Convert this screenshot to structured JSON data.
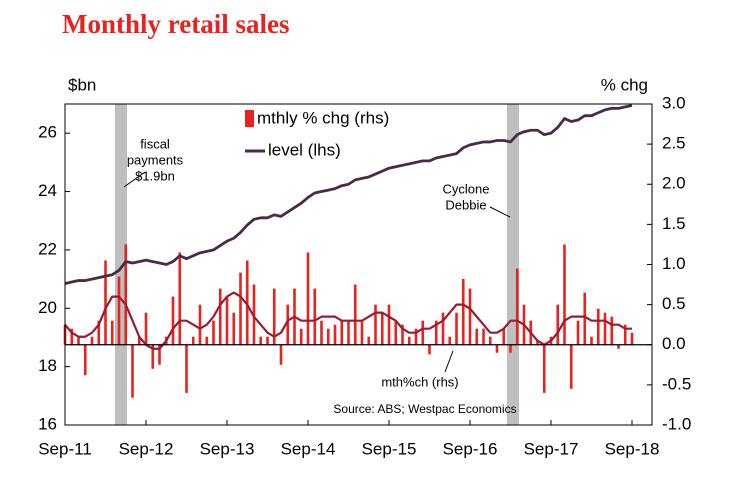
{
  "chart_data": {
    "type": "bar-line",
    "title": "Monthly retail sales",
    "y_axis_title": "$bn",
    "y2_axis_title": "% chg",
    "categories": [
      "Sep-11",
      null,
      null,
      null,
      null,
      null,
      null,
      null,
      null,
      null,
      null,
      null,
      "Sep-12",
      null,
      null,
      null,
      null,
      null,
      null,
      null,
      null,
      null,
      null,
      null,
      "Sep-13",
      null,
      null,
      null,
      null,
      null,
      null,
      null,
      null,
      null,
      null,
      null,
      "Sep-14",
      null,
      null,
      null,
      null,
      null,
      null,
      null,
      null,
      null,
      null,
      null,
      "Sep-15",
      null,
      null,
      null,
      null,
      null,
      null,
      null,
      null,
      null,
      null,
      null,
      "Sep-16",
      null,
      null,
      null,
      null,
      null,
      null,
      null,
      null,
      null,
      null,
      null,
      "Sep-17",
      null,
      null,
      null,
      null,
      null,
      null,
      null,
      null,
      null,
      null,
      null,
      "Sep-18"
    ],
    "ylim": [
      16,
      27
    ],
    "yticks": [
      16,
      18,
      20,
      22,
      24,
      26
    ],
    "y2lim": [
      -1,
      3
    ],
    "y2ticks": [
      {
        "value": -1,
        "label": "-1.0"
      },
      {
        "value": -0.5,
        "label": "-0.5"
      },
      {
        "value": 0,
        "label": "0.0"
      },
      {
        "value": 0.5,
        "label": "0.5"
      },
      {
        "value": 1,
        "label": "1.0"
      },
      {
        "value": 1.5,
        "label": "1.5"
      },
      {
        "value": 2,
        "label": "2.0"
      },
      {
        "value": 2.5,
        "label": "2.5"
      },
      {
        "value": 3,
        "label": "3.0"
      }
    ],
    "series": [
      {
        "name": "mthly % chg (rhs)",
        "type": "bar",
        "axis": "y2",
        "color": "#e8231f",
        "values": [
          0.25,
          0.2,
          0.1,
          -0.38,
          0.1,
          0.3,
          1.05,
          0.3,
          0.85,
          1.25,
          -0.66,
          0.1,
          0.4,
          -0.3,
          -0.25,
          0.1,
          0.6,
          1.15,
          -0.6,
          0.1,
          0.5,
          0.1,
          0.3,
          0.7,
          0.6,
          0.4,
          0.9,
          1.05,
          0.75,
          0.1,
          0.1,
          0.7,
          -0.25,
          0.5,
          0.7,
          0.2,
          1.15,
          0.7,
          0.3,
          0.2,
          0.25,
          0.3,
          0.3,
          0.75,
          0.3,
          0.1,
          0.5,
          0.4,
          0.5,
          0.3,
          0.25,
          0.1,
          0.2,
          0.3,
          -0.12,
          0.3,
          0.4,
          0.1,
          0.4,
          0.82,
          0.7,
          0.2,
          0.2,
          0.1,
          -0.1,
          0.2,
          -0.1,
          0.95,
          0.5,
          0.3,
          0.05,
          -0.6,
          0.1,
          0.5,
          1.25,
          -0.55,
          0.3,
          0.65,
          0.1,
          0.45,
          0.4,
          0.35,
          -0.05,
          0.25,
          0.15
        ]
      },
      {
        "name": "level (lhs)",
        "type": "line",
        "color": "#4b2a47",
        "values": [
          20.85,
          20.9,
          20.95,
          20.95,
          21.0,
          21.05,
          21.1,
          21.15,
          21.3,
          21.6,
          21.55,
          21.6,
          21.65,
          21.6,
          21.55,
          21.5,
          21.6,
          21.8,
          21.7,
          21.8,
          21.9,
          21.95,
          22.0,
          22.15,
          22.3,
          22.4,
          22.6,
          22.85,
          23.05,
          23.1,
          23.1,
          23.2,
          23.15,
          23.3,
          23.45,
          23.6,
          23.8,
          23.95,
          24.0,
          24.05,
          24.1,
          24.2,
          24.25,
          24.4,
          24.45,
          24.5,
          24.6,
          24.7,
          24.8,
          24.85,
          24.9,
          24.95,
          25.0,
          25.05,
          25.05,
          25.15,
          25.2,
          25.25,
          25.3,
          25.5,
          25.6,
          25.65,
          25.7,
          25.7,
          25.75,
          25.75,
          25.7,
          25.95,
          26.05,
          26.1,
          26.1,
          25.95,
          26.0,
          26.2,
          26.5,
          26.4,
          26.45,
          26.6,
          26.6,
          26.7,
          26.8,
          26.85,
          26.85,
          26.9,
          26.95
        ]
      },
      {
        "name": "mth%ch (rhs)",
        "type": "line",
        "axis": "y2",
        "color": "#9b1b30",
        "values": [
          0.25,
          0.15,
          0.1,
          0.1,
          0.15,
          0.25,
          0.45,
          0.6,
          0.6,
          0.5,
          0.3,
          0.1,
          0.0,
          -0.05,
          -0.05,
          0.05,
          0.2,
          0.3,
          0.3,
          0.25,
          0.2,
          0.25,
          0.35,
          0.5,
          0.6,
          0.65,
          0.6,
          0.5,
          0.35,
          0.25,
          0.15,
          0.1,
          0.15,
          0.3,
          0.35,
          0.3,
          0.3,
          0.3,
          0.35,
          0.35,
          0.35,
          0.3,
          0.3,
          0.3,
          0.3,
          0.35,
          0.4,
          0.4,
          0.35,
          0.3,
          0.2,
          0.15,
          0.15,
          0.2,
          0.2,
          0.25,
          0.3,
          0.4,
          0.5,
          0.5,
          0.45,
          0.35,
          0.25,
          0.15,
          0.15,
          0.2,
          0.3,
          0.3,
          0.25,
          0.15,
          0.05,
          0.0,
          0.05,
          0.15,
          0.3,
          0.35,
          0.35,
          0.35,
          0.3,
          0.3,
          0.3,
          0.25,
          0.25,
          0.2,
          0.2
        ]
      }
    ],
    "annotations": [
      {
        "lines": [
          "fiscal",
          "payments",
          "$1.9bn"
        ]
      },
      {
        "lines": [
          "Cyclone",
          "Debbie"
        ]
      }
    ],
    "source": "Source: ABS; Westpac Economics"
  }
}
